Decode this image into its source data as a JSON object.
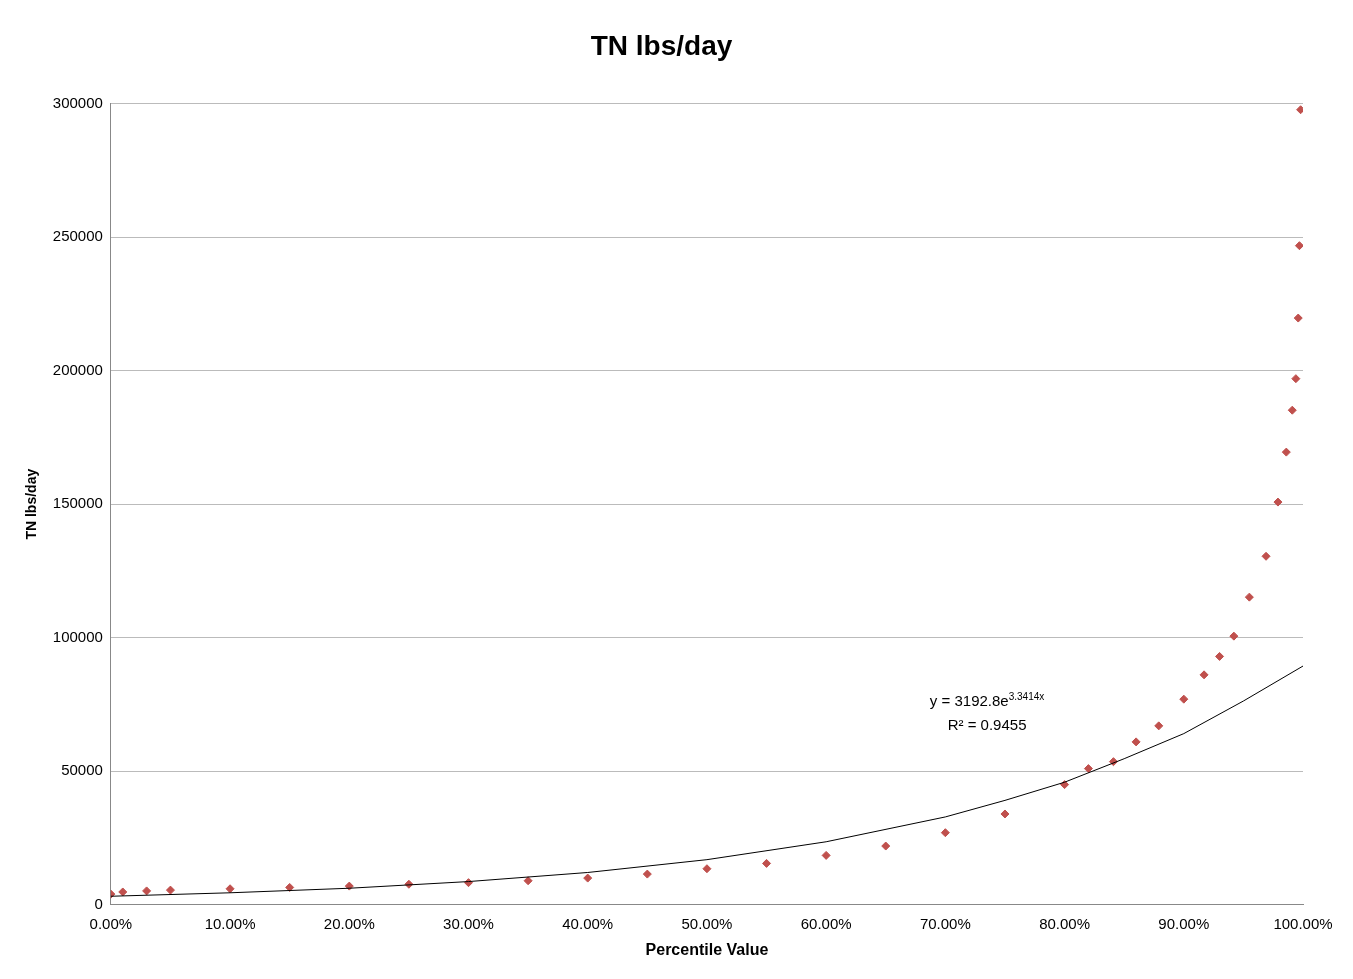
{
  "chart_data": {
    "type": "scatter",
    "title": "TN lbs/day",
    "xlabel": "Percentile Value",
    "ylabel": "TN lbs/day",
    "xlim": [
      0,
      1
    ],
    "ylim": [
      0,
      300000
    ],
    "xticks": [
      {
        "value": 0,
        "label": "0.00%"
      },
      {
        "value": 0.1,
        "label": "10.00%"
      },
      {
        "value": 0.2,
        "label": "20.00%"
      },
      {
        "value": 0.3,
        "label": "30.00%"
      },
      {
        "value": 0.4,
        "label": "40.00%"
      },
      {
        "value": 0.5,
        "label": "50.00%"
      },
      {
        "value": 0.6,
        "label": "60.00%"
      },
      {
        "value": 0.7,
        "label": "70.00%"
      },
      {
        "value": 0.8,
        "label": "80.00%"
      },
      {
        "value": 0.9,
        "label": "90.00%"
      },
      {
        "value": 1,
        "label": "100.00%"
      }
    ],
    "yticks": [
      0,
      50000,
      100000,
      150000,
      200000,
      250000,
      300000
    ],
    "grid": "y",
    "legend": false,
    "marker": "diamond",
    "series": [
      {
        "color": "#c0504d",
        "x": [
          0,
          0.01,
          0.03,
          0.05,
          0.1,
          0.15,
          0.2,
          0.25,
          0.3,
          0.35,
          0.4,
          0.45,
          0.5,
          0.55,
          0.6,
          0.65,
          0.7,
          0.75,
          0.8,
          0.82,
          0.841,
          0.86,
          0.879,
          0.9,
          0.917,
          0.93,
          0.942,
          0.955,
          0.969,
          0.979,
          0.986,
          0.991,
          0.994,
          0.996,
          0.997,
          0.998
        ],
        "values": [
          4000,
          4800,
          5200,
          5500,
          6000,
          6500,
          7000,
          7700,
          8300,
          9000,
          10000,
          11500,
          13500,
          15500,
          18500,
          22000,
          27000,
          34000,
          45000,
          51000,
          53600,
          61000,
          67000,
          77000,
          86100,
          93000,
          100600,
          115200,
          130500,
          150800,
          169500,
          185200,
          197000,
          219700,
          246800,
          297700
        ]
      },
      {
        "type": "line",
        "color": "#000000",
        "marker": "none",
        "x": [
          0,
          0.1,
          0.2,
          0.3,
          0.4,
          0.5,
          0.6,
          0.7,
          0.75,
          0.8,
          0.85,
          0.9,
          0.95,
          1
        ],
        "values": [
          3200,
          4500,
          6200,
          8700,
          12100,
          16900,
          23600,
          32900,
          39100,
          45900,
          54700,
          64100,
          76300,
          89400
        ]
      }
    ],
    "annotations": [
      "y = 3192.8e$^{3.3414x}$",
      "R² = 0.9455"
    ]
  }
}
